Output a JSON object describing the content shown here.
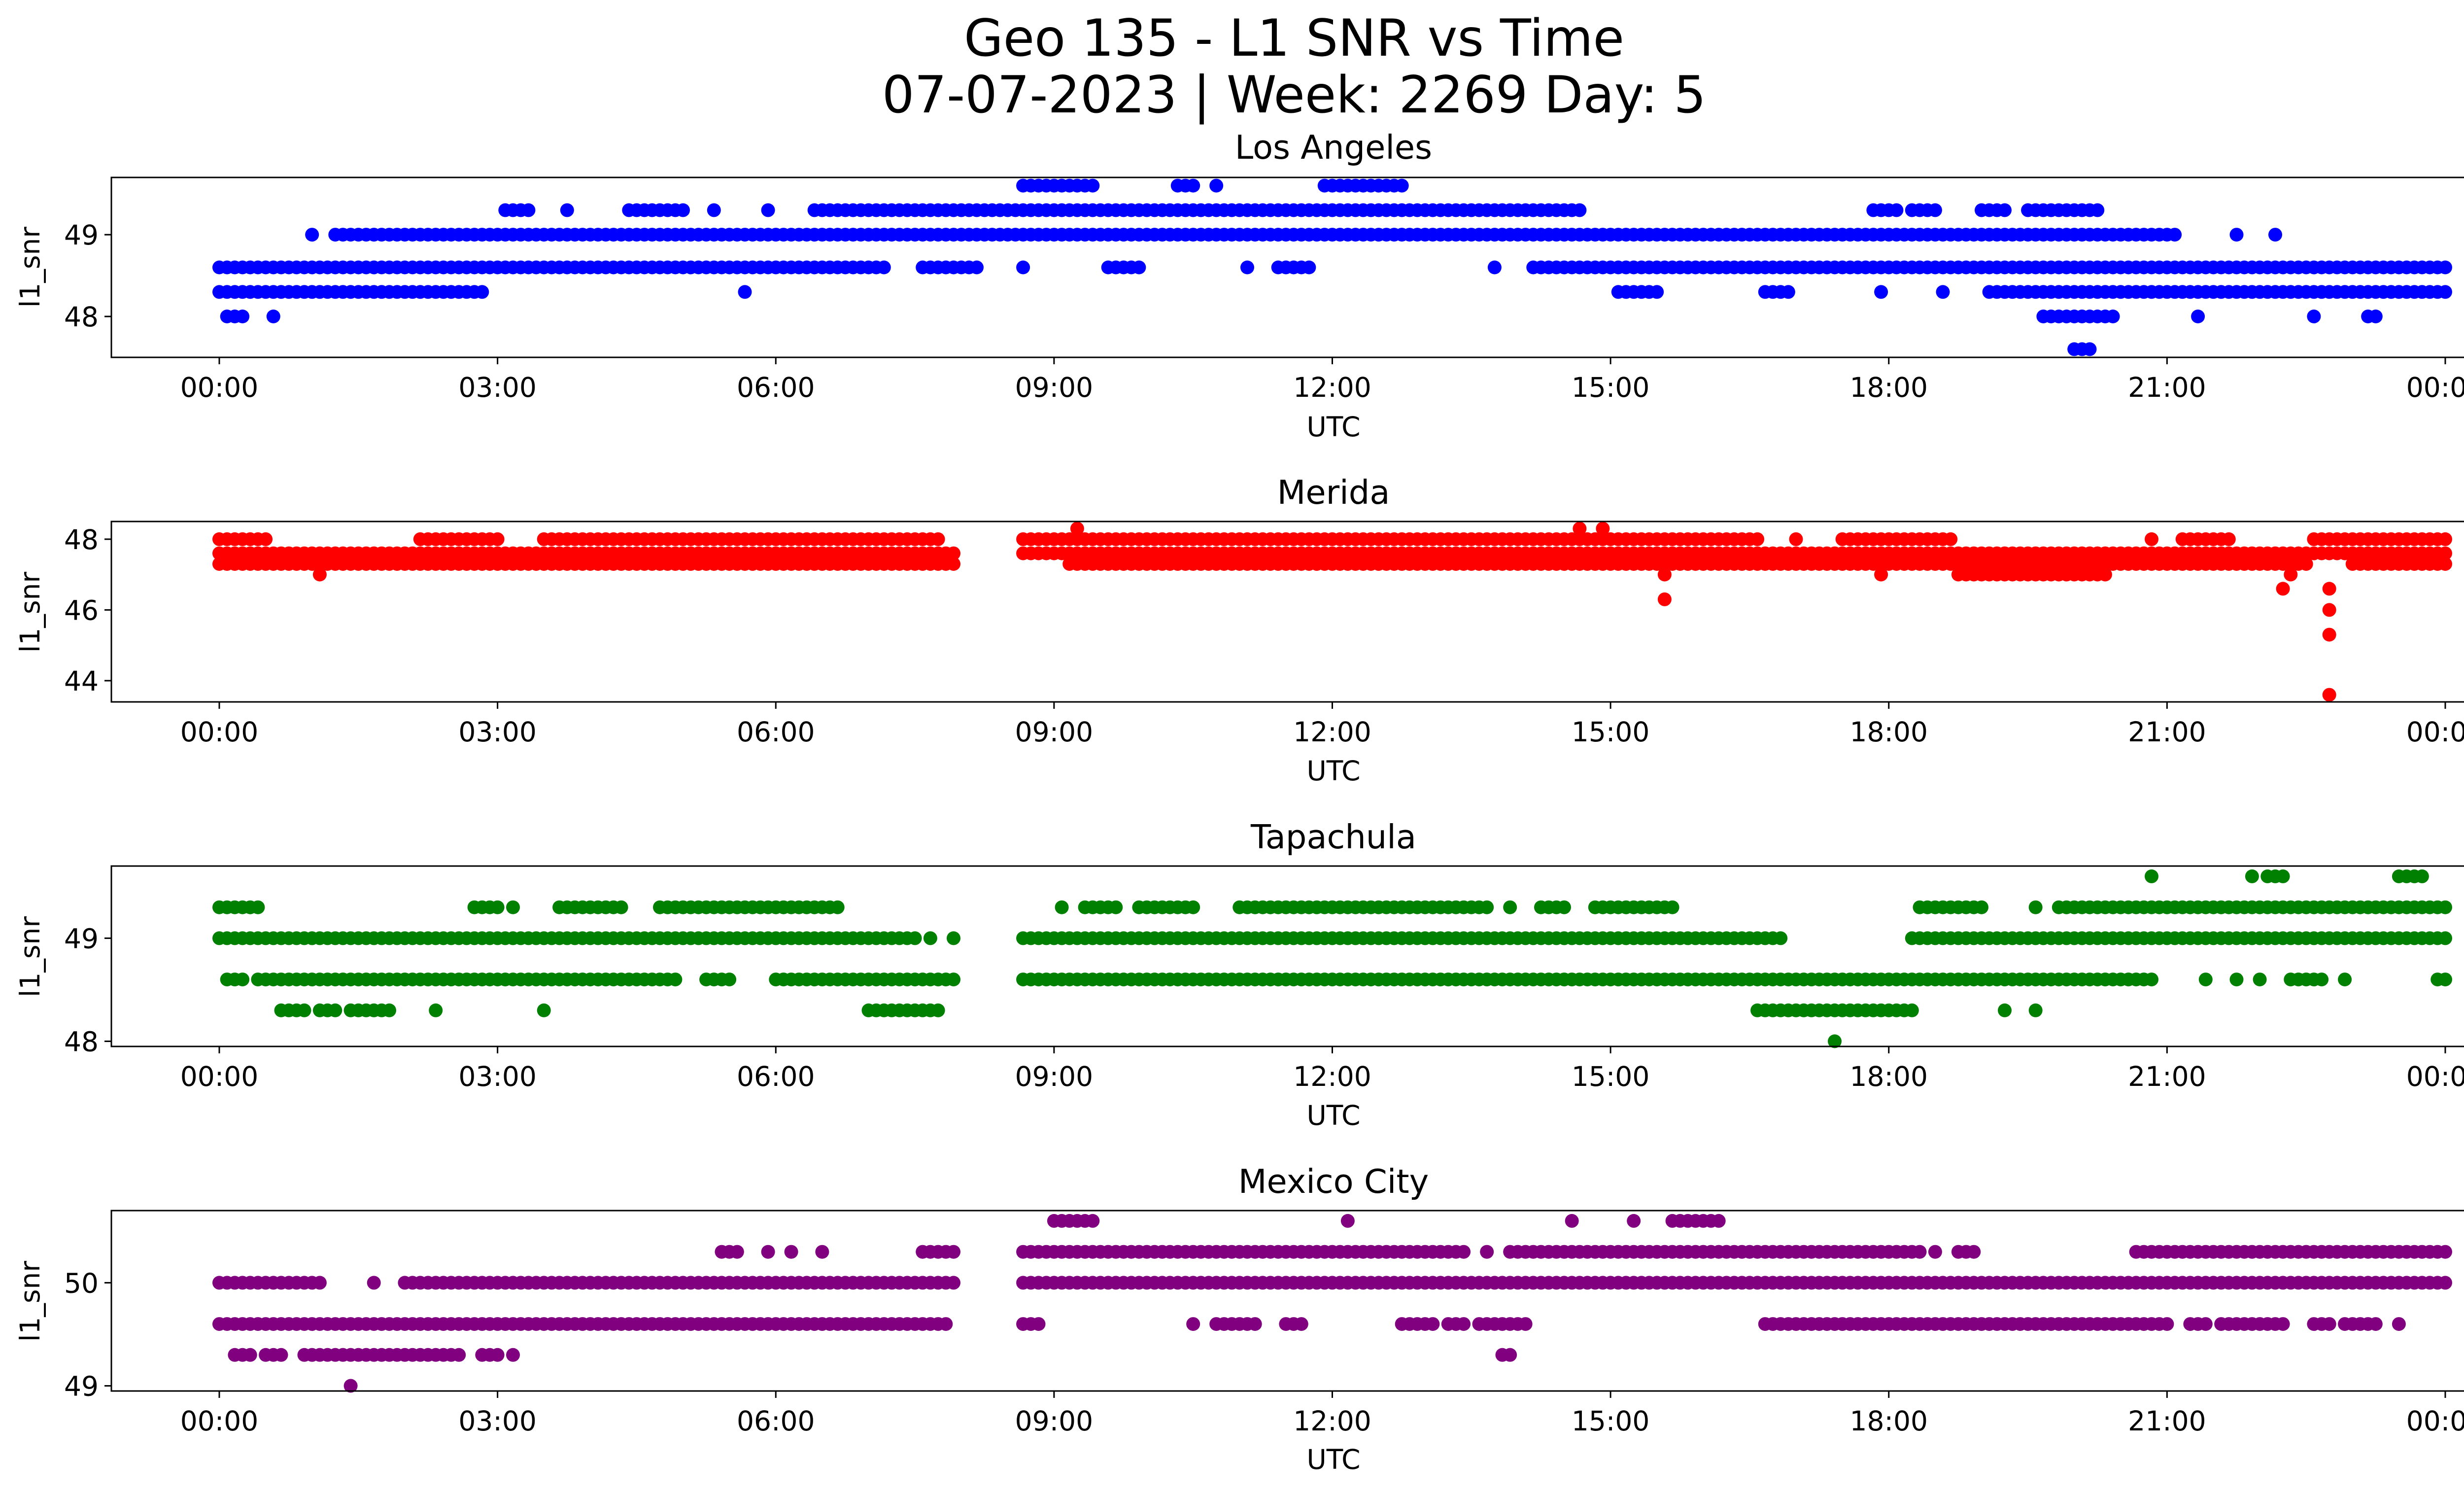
{
  "figure": {
    "title_line1": "Geo 135 - L1 SNR vs Time",
    "title_line2": "07-07-2023 | Week: 2269 Day: 5"
  },
  "chart_data": [
    {
      "type": "scatter",
      "title": "Los Angeles",
      "xlabel": "UTC",
      "ylabel": "l1_snr",
      "color": "#0000ff",
      "xlim": [
        "00:00",
        "24:00"
      ],
      "ylim": [
        47.5,
        49.7
      ],
      "xticks": [
        "00:00",
        "03:00",
        "06:00",
        "09:00",
        "12:00",
        "15:00",
        "18:00",
        "21:00",
        "00:00"
      ],
      "yticks": [
        48,
        49
      ],
      "series": [
        {
          "y": 48.3,
          "segments": [
            [
              "00:00",
              "02:50"
            ],
            [
              "05:40",
              "05:40"
            ],
            [
              "15:05",
              "15:30"
            ],
            [
              "16:40",
              "16:55"
            ],
            [
              "17:55",
              "17:55"
            ],
            [
              "18:35",
              "18:35"
            ],
            [
              "19:05",
              "24:00"
            ]
          ]
        },
        {
          "y": 48.6,
          "segments": [
            [
              "00:00",
              "07:10"
            ],
            [
              "07:35",
              "08:10"
            ],
            [
              "08:40",
              "08:40"
            ],
            [
              "09:35",
              "09:55"
            ],
            [
              "11:05",
              "11:05"
            ],
            [
              "11:25",
              "11:45"
            ],
            [
              "13:45",
              "13:45"
            ],
            [
              "14:10",
              "24:00"
            ]
          ]
        },
        {
          "y": 49.0,
          "segments": [
            [
              "01:00",
              "01:00"
            ],
            [
              "01:15",
              "21:05"
            ],
            [
              "21:45",
              "21:45"
            ],
            [
              "22:10",
              "22:10"
            ]
          ]
        },
        {
          "y": 49.3,
          "segments": [
            [
              "03:05",
              "03:20"
            ],
            [
              "03:45",
              "03:45"
            ],
            [
              "04:25",
              "05:00"
            ],
            [
              "05:20",
              "05:20"
            ],
            [
              "05:55",
              "05:55"
            ],
            [
              "06:25",
              "14:40"
            ],
            [
              "17:50",
              "18:05"
            ],
            [
              "18:15",
              "18:30"
            ],
            [
              "19:00",
              "19:15"
            ],
            [
              "19:30",
              "20:15"
            ]
          ]
        },
        {
          "y": 49.6,
          "segments": [
            [
              "08:40",
              "09:25"
            ],
            [
              "10:20",
              "10:30"
            ],
            [
              "10:45",
              "10:45"
            ],
            [
              "11:55",
              "12:45"
            ]
          ]
        },
        {
          "y": 48.0,
          "segments": [
            [
              "00:05",
              "00:15"
            ],
            [
              "00:35",
              "00:35"
            ],
            [
              "19:40",
              "20:25"
            ],
            [
              "21:20",
              "21:20"
            ],
            [
              "22:35",
              "22:35"
            ],
            [
              "23:10",
              "23:15"
            ]
          ]
        },
        {
          "y": 47.6,
          "segments": [
            [
              "20:00",
              "20:10"
            ]
          ]
        }
      ]
    },
    {
      "type": "scatter",
      "title": "Merida",
      "xlabel": "UTC",
      "ylabel": "l1_snr",
      "color": "#ff0000",
      "xlim": [
        "00:00",
        "24:00"
      ],
      "ylim": [
        43.4,
        48.5
      ],
      "xticks": [
        "00:00",
        "03:00",
        "06:00",
        "09:00",
        "12:00",
        "15:00",
        "18:00",
        "21:00",
        "00:00"
      ],
      "yticks": [
        44,
        46,
        48
      ],
      "series": [
        {
          "y": 47.3,
          "segments": [
            [
              "00:00",
              "07:55"
            ],
            [
              "09:10",
              "22:30"
            ],
            [
              "23:00",
              "24:00"
            ]
          ]
        },
        {
          "y": 47.6,
          "segments": [
            [
              "00:00",
              "07:55"
            ],
            [
              "08:40",
              "24:00"
            ]
          ]
        },
        {
          "y": 48.0,
          "segments": [
            [
              "00:00",
              "00:30"
            ],
            [
              "02:10",
              "03:00"
            ],
            [
              "03:30",
              "07:45"
            ],
            [
              "08:40",
              "16:35"
            ],
            [
              "17:00",
              "17:00"
            ],
            [
              "17:30",
              "18:40"
            ],
            [
              "20:50",
              "20:50"
            ],
            [
              "21:10",
              "21:40"
            ],
            [
              "22:35",
              "24:00"
            ]
          ]
        },
        {
          "y": 47.0,
          "segments": [
            [
              "01:05",
              "01:05"
            ],
            [
              "15:35",
              "15:35"
            ],
            [
              "17:55",
              "17:55"
            ],
            [
              "18:45",
              "20:20"
            ],
            [
              "22:20",
              "22:20"
            ]
          ]
        },
        {
          "y": 46.6,
          "segments": [
            [
              "22:15",
              "22:15"
            ],
            [
              "22:45",
              "22:45"
            ]
          ]
        },
        {
          "y": 48.3,
          "segments": [
            [
              "09:15",
              "09:15"
            ],
            [
              "14:40",
              "14:40"
            ],
            [
              "14:55",
              "14:55"
            ]
          ]
        },
        {
          "y": 46.3,
          "segments": [
            [
              "15:35",
              "15:35"
            ]
          ]
        },
        {
          "y": 46.0,
          "segments": [
            [
              "22:45",
              "22:45"
            ]
          ]
        },
        {
          "y": 45.3,
          "segments": [
            [
              "22:45",
              "22:45"
            ]
          ]
        },
        {
          "y": 43.6,
          "segments": [
            [
              "22:45",
              "22:45"
            ]
          ]
        }
      ]
    },
    {
      "type": "scatter",
      "title": "Tapachula",
      "xlabel": "UTC",
      "ylabel": "l1_snr",
      "color": "#008000",
      "xlim": [
        "00:00",
        "24:00"
      ],
      "ylim": [
        47.95,
        49.7
      ],
      "xticks": [
        "00:00",
        "03:00",
        "06:00",
        "09:00",
        "12:00",
        "15:00",
        "18:00",
        "21:00",
        "00:00"
      ],
      "yticks": [
        48,
        49
      ],
      "series": [
        {
          "y": 48.3,
          "segments": [
            [
              "00:40",
              "00:55"
            ],
            [
              "01:05",
              "01:15"
            ],
            [
              "01:25",
              "01:50"
            ],
            [
              "02:20",
              "02:20"
            ],
            [
              "03:30",
              "03:30"
            ],
            [
              "07:00",
              "07:45"
            ],
            [
              "16:35",
              "18:15"
            ],
            [
              "19:15",
              "19:15"
            ],
            [
              "19:35",
              "19:35"
            ]
          ]
        },
        {
          "y": 48.6,
          "segments": [
            [
              "00:05",
              "00:15"
            ],
            [
              "00:25",
              "04:55"
            ],
            [
              "05:15",
              "05:30"
            ],
            [
              "06:00",
              "07:55"
            ],
            [
              "08:40",
              "20:50"
            ],
            [
              "21:25",
              "21:25"
            ],
            [
              "21:45",
              "21:45"
            ],
            [
              "22:00",
              "22:00"
            ],
            [
              "22:20",
              "22:40"
            ],
            [
              "22:55",
              "22:55"
            ],
            [
              "23:55",
              "24:00"
            ]
          ]
        },
        {
          "y": 49.0,
          "segments": [
            [
              "00:00",
              "07:30"
            ],
            [
              "07:40",
              "07:40"
            ],
            [
              "07:55",
              "07:55"
            ],
            [
              "08:40",
              "16:50"
            ],
            [
              "18:15",
              "24:00"
            ]
          ]
        },
        {
          "y": 49.3,
          "segments": [
            [
              "00:00",
              "00:25"
            ],
            [
              "02:45",
              "03:00"
            ],
            [
              "03:10",
              "03:10"
            ],
            [
              "03:40",
              "04:20"
            ],
            [
              "04:45",
              "06:40"
            ],
            [
              "09:05",
              "09:05"
            ],
            [
              "09:20",
              "09:40"
            ],
            [
              "09:55",
              "10:30"
            ],
            [
              "11:00",
              "13:40"
            ],
            [
              "13:55",
              "13:55"
            ],
            [
              "14:15",
              "14:30"
            ],
            [
              "14:50",
              "15:40"
            ],
            [
              "18:20",
              "18:55"
            ],
            [
              "19:00",
              "19:00"
            ],
            [
              "19:35",
              "19:35"
            ],
            [
              "19:50",
              "24:00"
            ]
          ]
        },
        {
          "y": 49.6,
          "segments": [
            [
              "20:50",
              "20:50"
            ],
            [
              "21:55",
              "21:55"
            ],
            [
              "22:05",
              "22:15"
            ],
            [
              "23:30",
              "23:45"
            ]
          ]
        },
        {
          "y": 48.0,
          "segments": [
            [
              "17:25",
              "17:25"
            ]
          ]
        }
      ]
    },
    {
      "type": "scatter",
      "title": "Mexico City",
      "xlabel": "UTC",
      "ylabel": "l1_snr",
      "color": "#800080",
      "xlim": [
        "00:00",
        "24:00"
      ],
      "ylim": [
        48.95,
        50.7
      ],
      "xticks": [
        "00:00",
        "03:00",
        "06:00",
        "09:00",
        "12:00",
        "15:00",
        "18:00",
        "21:00",
        "00:00"
      ],
      "yticks": [
        49,
        50
      ],
      "series": [
        {
          "y": 49.3,
          "segments": [
            [
              "00:10",
              "00:20"
            ],
            [
              "00:30",
              "00:40"
            ],
            [
              "00:55",
              "02:35"
            ],
            [
              "02:50",
              "03:00"
            ],
            [
              "03:10",
              "03:10"
            ],
            [
              "13:50",
              "13:55"
            ]
          ]
        },
        {
          "y": 49.6,
          "segments": [
            [
              "00:00",
              "07:50"
            ],
            [
              "08:40",
              "08:50"
            ],
            [
              "10:30",
              "10:30"
            ],
            [
              "10:45",
              "11:10"
            ],
            [
              "11:30",
              "11:40"
            ],
            [
              "12:45",
              "13:05"
            ],
            [
              "13:15",
              "13:25"
            ],
            [
              "13:35",
              "14:05"
            ],
            [
              "16:40",
              "21:00"
            ],
            [
              "21:15",
              "21:25"
            ],
            [
              "21:35",
              "22:15"
            ],
            [
              "22:35",
              "22:45"
            ],
            [
              "22:55",
              "23:15"
            ],
            [
              "23:30",
              "23:30"
            ]
          ]
        },
        {
          "y": 50.0,
          "segments": [
            [
              "00:00",
              "01:05"
            ],
            [
              "01:40",
              "01:40"
            ],
            [
              "02:00",
              "07:55"
            ],
            [
              "08:40",
              "24:00"
            ]
          ]
        },
        {
          "y": 50.3,
          "segments": [
            [
              "05:25",
              "05:35"
            ],
            [
              "05:55",
              "05:55"
            ],
            [
              "06:10",
              "06:10"
            ],
            [
              "06:30",
              "06:30"
            ],
            [
              "07:35",
              "07:55"
            ],
            [
              "08:40",
              "13:25"
            ],
            [
              "13:40",
              "13:40"
            ],
            [
              "13:55",
              "18:20"
            ],
            [
              "18:30",
              "18:30"
            ],
            [
              "18:45",
              "18:55"
            ],
            [
              "20:40",
              "24:00"
            ]
          ]
        },
        {
          "y": 50.6,
          "segments": [
            [
              "09:00",
              "09:25"
            ],
            [
              "12:10",
              "12:10"
            ],
            [
              "14:35",
              "14:35"
            ],
            [
              "15:15",
              "15:15"
            ],
            [
              "15:40",
              "16:10"
            ]
          ]
        },
        {
          "y": 49.0,
          "segments": [
            [
              "01:25",
              "01:25"
            ]
          ]
        }
      ]
    }
  ]
}
